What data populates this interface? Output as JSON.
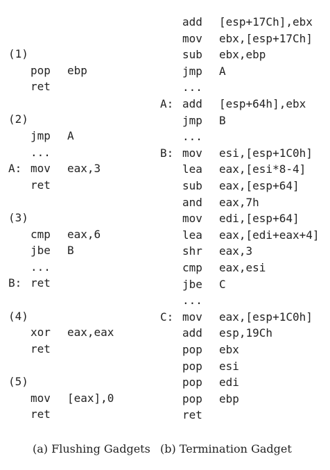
{
  "left": {
    "lines": [
      {
        "label": "(1)",
        "mn": "",
        "op": ""
      },
      {
        "label": "",
        "mn": "pop",
        "op": "ebp"
      },
      {
        "label": "",
        "mn": "ret",
        "op": ""
      },
      {
        "label": "",
        "mn": "",
        "op": ""
      },
      {
        "label": "(2)",
        "mn": "",
        "op": ""
      },
      {
        "label": "",
        "mn": "jmp",
        "op": "A"
      },
      {
        "label": "",
        "mn": "...",
        "op": ""
      },
      {
        "label": "A:",
        "mn": "mov",
        "op": "eax,3"
      },
      {
        "label": "",
        "mn": "ret",
        "op": ""
      },
      {
        "label": "",
        "mn": "",
        "op": ""
      },
      {
        "label": "(3)",
        "mn": "",
        "op": ""
      },
      {
        "label": "",
        "mn": "cmp",
        "op": "eax,6"
      },
      {
        "label": "",
        "mn": "jbe",
        "op": "B"
      },
      {
        "label": "",
        "mn": "...",
        "op": ""
      },
      {
        "label": "B:",
        "mn": "ret",
        "op": ""
      },
      {
        "label": "",
        "mn": "",
        "op": ""
      },
      {
        "label": "(4)",
        "mn": "",
        "op": ""
      },
      {
        "label": "",
        "mn": "xor",
        "op": "eax,eax"
      },
      {
        "label": "",
        "mn": "ret",
        "op": ""
      },
      {
        "label": "",
        "mn": "",
        "op": ""
      },
      {
        "label": "(5)",
        "mn": "",
        "op": ""
      },
      {
        "label": "",
        "mn": "mov",
        "op": "[eax],0"
      },
      {
        "label": "",
        "mn": "ret",
        "op": ""
      }
    ]
  },
  "right": {
    "lines": [
      {
        "label": "",
        "mn": "add",
        "op": "[esp+17Ch],ebx"
      },
      {
        "label": "",
        "mn": "mov",
        "op": "ebx,[esp+17Ch]"
      },
      {
        "label": "",
        "mn": "sub",
        "op": "ebx,ebp"
      },
      {
        "label": "",
        "mn": "jmp",
        "op": "A"
      },
      {
        "label": "",
        "mn": "...",
        "op": ""
      },
      {
        "label": "A:",
        "mn": "add",
        "op": "[esp+64h],ebx"
      },
      {
        "label": "",
        "mn": "jmp",
        "op": "B"
      },
      {
        "label": "",
        "mn": "...",
        "op": ""
      },
      {
        "label": "B:",
        "mn": "mov",
        "op": "esi,[esp+1C0h]"
      },
      {
        "label": "",
        "mn": "lea",
        "op": "eax,[esi*8-4]"
      },
      {
        "label": "",
        "mn": "sub",
        "op": "eax,[esp+64]"
      },
      {
        "label": "",
        "mn": "and",
        "op": "eax,7h"
      },
      {
        "label": "",
        "mn": "mov",
        "op": "edi,[esp+64]"
      },
      {
        "label": "",
        "mn": "lea",
        "op": "eax,[edi+eax+4]"
      },
      {
        "label": "",
        "mn": "shr",
        "op": "eax,3"
      },
      {
        "label": "",
        "mn": "cmp",
        "op": "eax,esi"
      },
      {
        "label": "",
        "mn": "jbe",
        "op": "C"
      },
      {
        "label": "",
        "mn": "...",
        "op": ""
      },
      {
        "label": "C:",
        "mn": "mov",
        "op": "eax,[esp+1C0h]"
      },
      {
        "label": "",
        "mn": "add",
        "op": "esp,19Ch"
      },
      {
        "label": "",
        "mn": "pop",
        "op": "ebx"
      },
      {
        "label": "",
        "mn": "pop",
        "op": "esi"
      },
      {
        "label": "",
        "mn": "pop",
        "op": "edi"
      },
      {
        "label": "",
        "mn": "pop",
        "op": "ebp"
      },
      {
        "label": "",
        "mn": "ret",
        "op": ""
      }
    ]
  },
  "captions": {
    "a": "(a) Flushing Gadgets",
    "b": "(b) Termination Gadget"
  }
}
